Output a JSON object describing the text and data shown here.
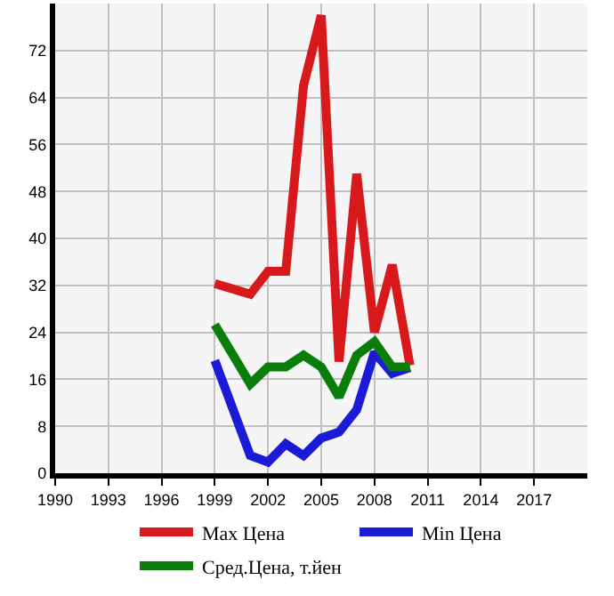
{
  "chart_data": {
    "type": "line",
    "x": [
      1999,
      2001,
      2002,
      2003,
      2004,
      2005,
      2006,
      2007,
      2008,
      2009,
      2010
    ],
    "series": [
      {
        "name": "Max Цена",
        "color": "#d7191c",
        "values": [
          32.3,
          30.5,
          34.4,
          34.4,
          66,
          78,
          19,
          51,
          24,
          35.5,
          18.4
        ]
      },
      {
        "name": "Min Цена",
        "color": "#1a1ad7",
        "values": [
          19.2,
          3,
          1.9,
          5,
          3,
          6,
          7,
          10.8,
          20.6,
          17,
          18
        ]
      },
      {
        "name": "Сред.Цена, т.йен",
        "color": "#0a7d0a",
        "values": [
          25.3,
          15.2,
          18.1,
          18.1,
          20.1,
          18.1,
          13,
          20.1,
          22.4,
          18.1,
          18.1
        ]
      }
    ],
    "xlim": [
      1990,
      2020
    ],
    "xticks": [
      1990,
      1993,
      1996,
      1999,
      2002,
      2005,
      2008,
      2011,
      2014,
      2017
    ],
    "ylim": [
      0,
      80
    ],
    "yticks": [
      0,
      8,
      16,
      24,
      32,
      40,
      48,
      56,
      64,
      72
    ],
    "grid": true,
    "legend": "bottom",
    "marker": "none",
    "line_style": "solid"
  }
}
